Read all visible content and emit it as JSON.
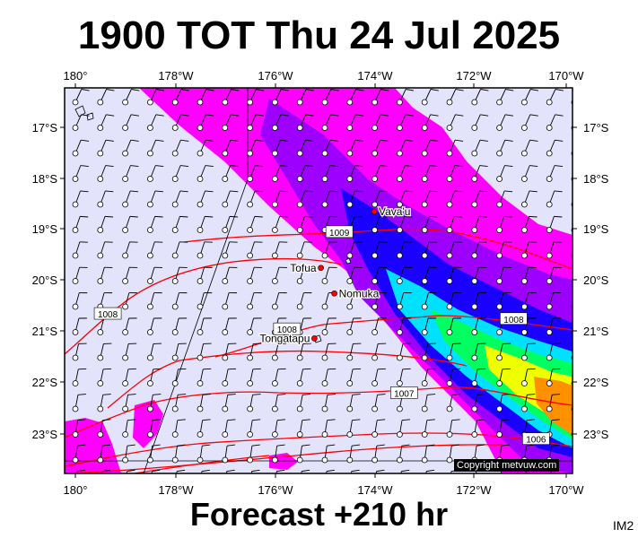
{
  "header": {
    "title": "1900 TOT Thu 24 Jul 2025"
  },
  "footer": {
    "forecast": "Forecast +210 hr",
    "panel_id": "IM2",
    "credit": "Copyright metvuw.com"
  },
  "axes": {
    "lon_ticks": [
      "180°",
      "178°W",
      "176°W",
      "174°W",
      "172°W",
      "170°W"
    ],
    "lat_ticks": [
      "17°S",
      "18°S",
      "19°S",
      "20°S",
      "21°S",
      "22°S",
      "23°S"
    ]
  },
  "places": [
    {
      "name": "Vava'u",
      "lon": -174.0,
      "lat": -18.65
    },
    {
      "name": "Tofua",
      "lon": -175.07,
      "lat": -19.75
    },
    {
      "name": "Nomuka",
      "lon": -174.8,
      "lat": -20.25
    },
    {
      "name": "Tongatapu",
      "lon": -175.2,
      "lat": -21.13
    }
  ],
  "isobars": [
    {
      "label": "1009",
      "lon": -174.7,
      "lat": -19.05
    },
    {
      "label": "1008",
      "lon": -179.35,
      "lat": -20.65
    },
    {
      "label": "1008",
      "lon": -175.75,
      "lat": -20.95
    },
    {
      "label": "1008",
      "lon": -171.2,
      "lat": -20.75
    },
    {
      "label": "1007",
      "lon": -173.4,
      "lat": -22.2
    },
    {
      "label": "1006",
      "lon": -170.75,
      "lat": -23.1
    }
  ],
  "colors": {
    "background": "#e3e3fb",
    "wind_strong": "#ff00ff",
    "rain_purple": "#9d00ff",
    "rain_blue": "#1a00ff",
    "rain_cyan": "#00e0ff",
    "rain_green": "#00ff60",
    "rain_yellow": "#f0ff00",
    "rain_orange": "#ff9000",
    "isobar": "#ff0000"
  }
}
